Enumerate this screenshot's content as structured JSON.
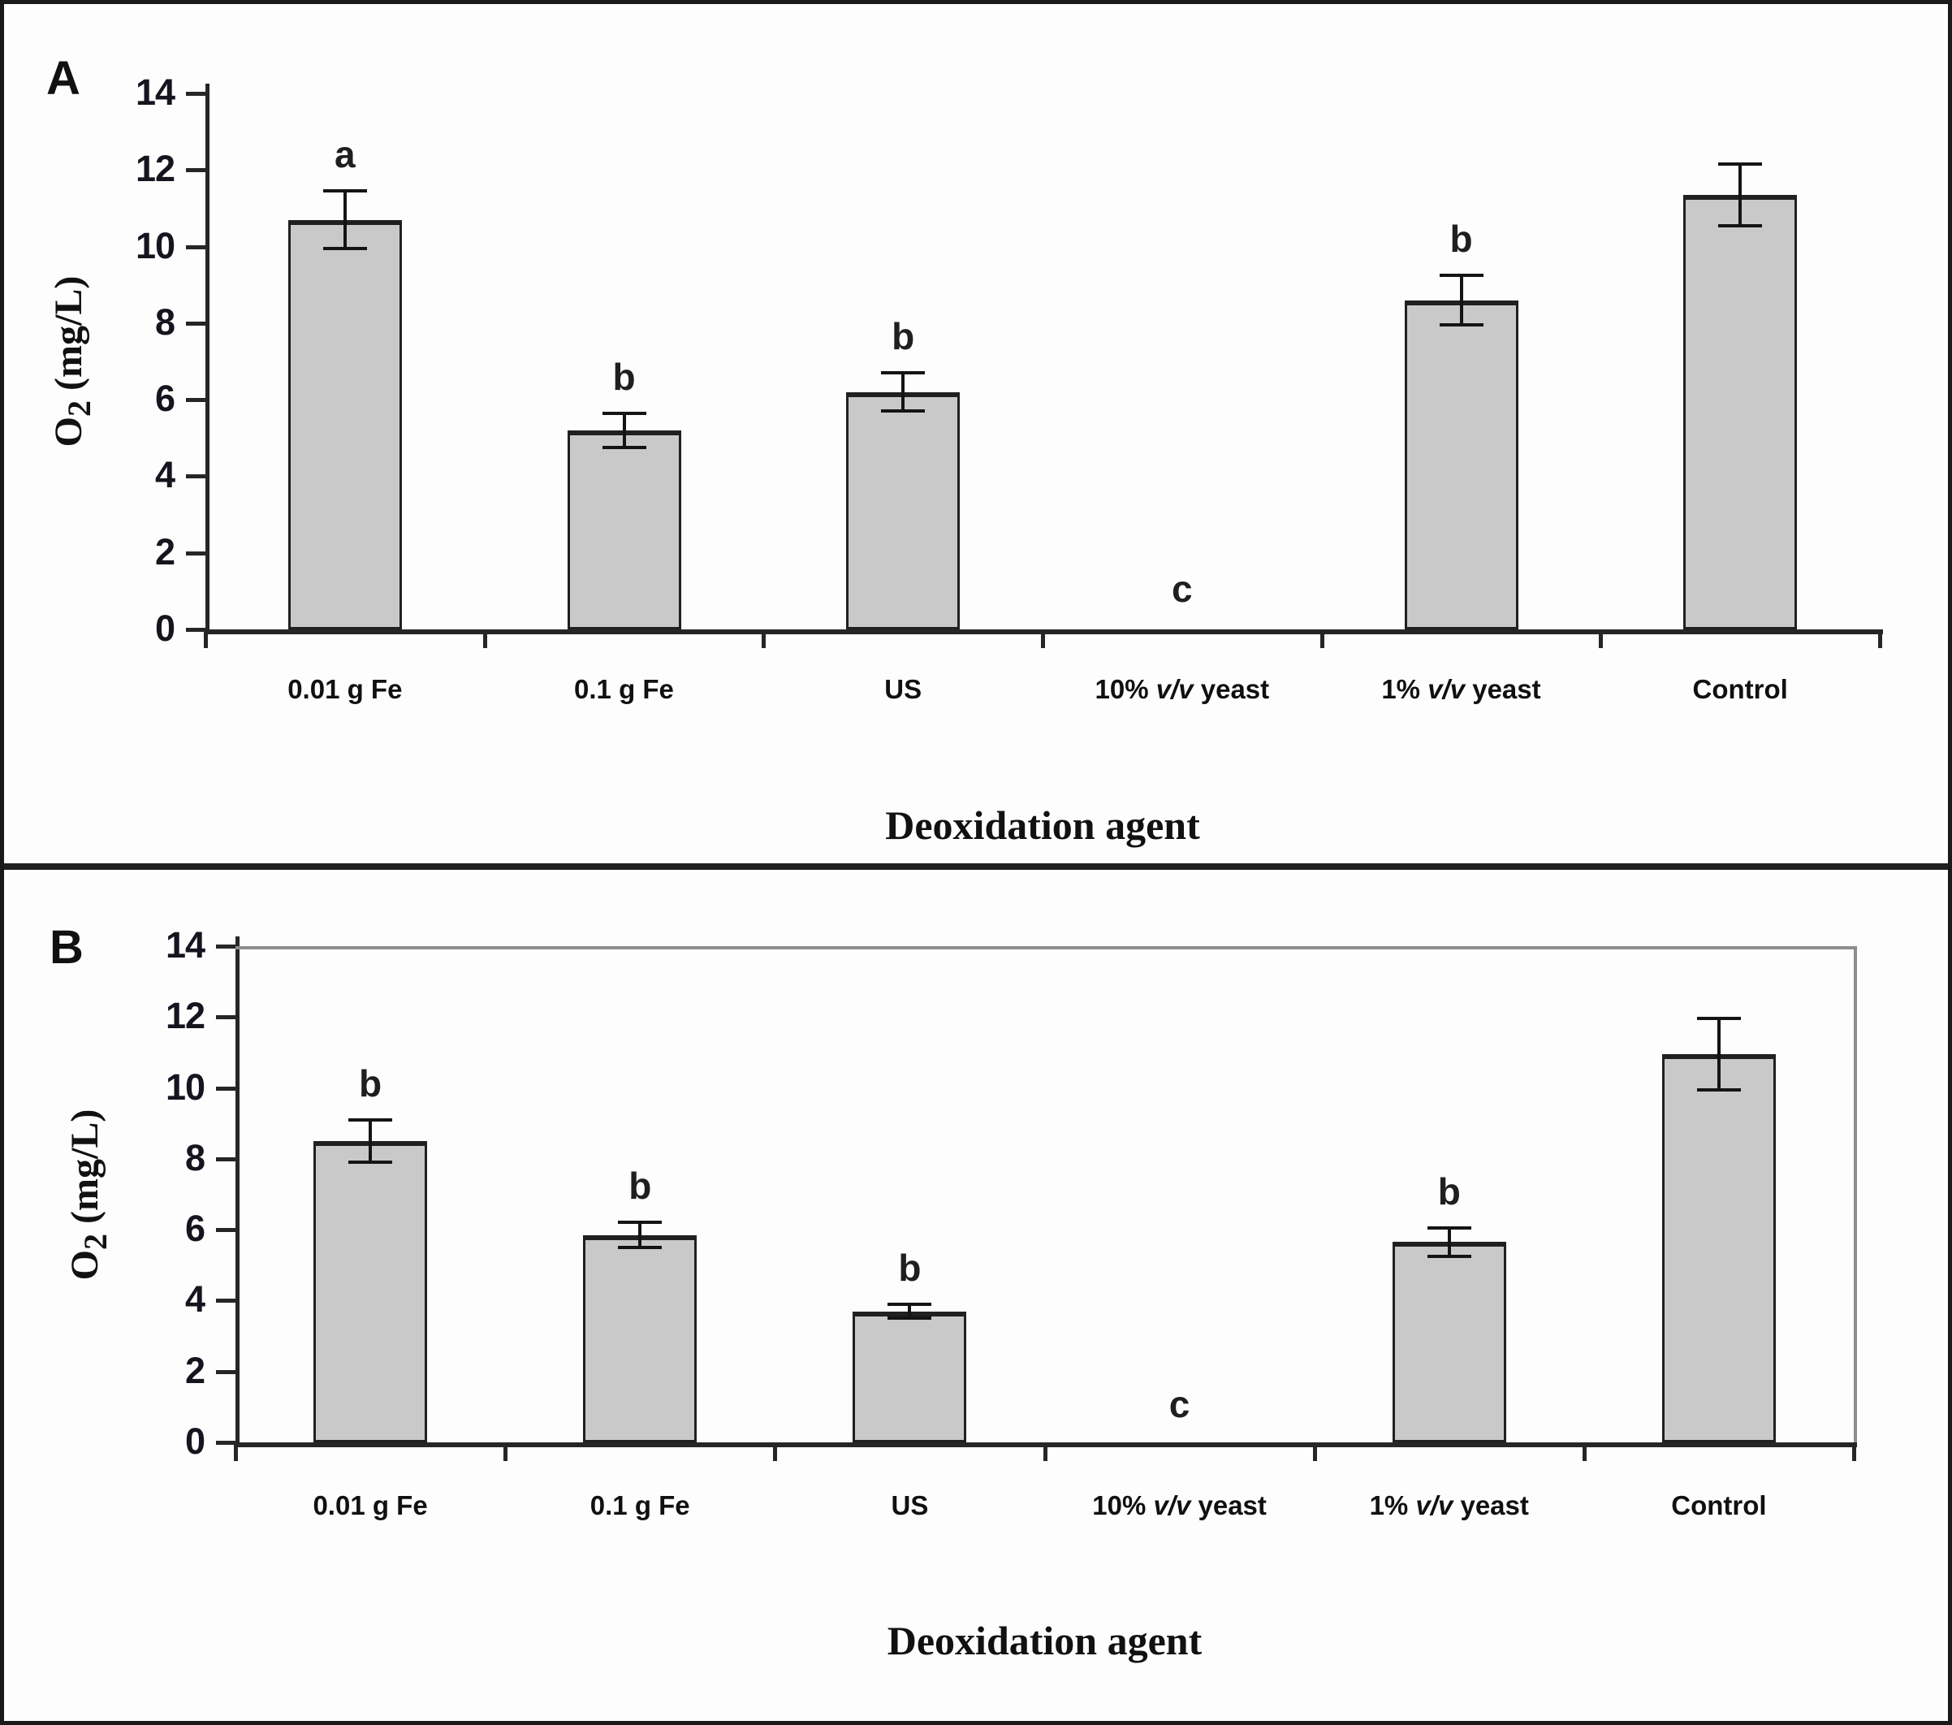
{
  "figure_labels": {
    "panel_a": "A",
    "panel_b": "B"
  },
  "chart_data": [
    {
      "type": "bar",
      "panel": "A",
      "xlabel": "Deoxidation agent",
      "ylabel": "O2 (mg/L)",
      "categories": [
        "0.01 g Fe",
        "0.1 g Fe",
        "US",
        "10% v/v yeast",
        "1% v/v yeast",
        "Control"
      ],
      "values": [
        10.7,
        5.2,
        6.2,
        0,
        8.6,
        11.35
      ],
      "error_bars": [
        0.75,
        0.45,
        0.5,
        0,
        0.65,
        0.8
      ],
      "sig_letters": [
        "a",
        "b",
        "b",
        "c",
        "b",
        ""
      ],
      "ylim": [
        0,
        14
      ],
      "ytick_step": 2,
      "grid": false,
      "legend": false,
      "bar_fill": "#c9c9c9",
      "bar_border": "#202020"
    },
    {
      "type": "bar",
      "panel": "B",
      "xlabel": "Deoxidation agent",
      "ylabel": "O2 (mg/L)",
      "categories": [
        "0.01 g Fe",
        "0.1 g Fe",
        "US",
        "10% v/v yeast",
        "1% v/v yeast",
        "Control"
      ],
      "values": [
        8.5,
        5.85,
        3.7,
        0,
        5.65,
        10.95
      ],
      "error_bars": [
        0.6,
        0.35,
        0.2,
        0,
        0.4,
        1.0
      ],
      "sig_letters": [
        "b",
        "b",
        "b",
        "c",
        "b",
        ""
      ],
      "ylim": [
        0,
        14
      ],
      "ytick_step": 2,
      "grid": false,
      "legend": false,
      "bar_fill": "#c9c9c9",
      "bar_border": "#202020"
    }
  ]
}
